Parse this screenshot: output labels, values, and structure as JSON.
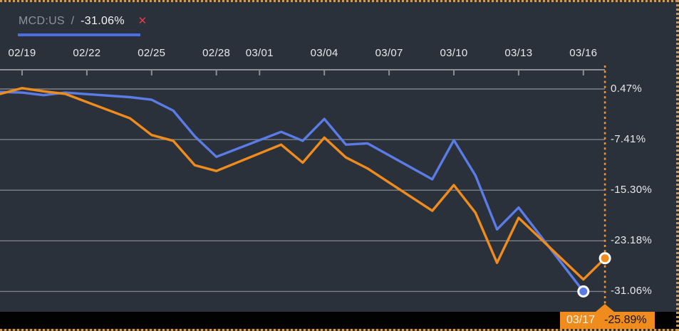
{
  "header": {
    "ticker": "MCD:US",
    "separator": "/",
    "change": "-31.06%",
    "close_icon": "✕"
  },
  "badge": {
    "date": "03/17",
    "value": "-25.89%"
  },
  "colors": {
    "background": "#2b313a",
    "frame_border": "#d19b55",
    "grid": "#7d828a",
    "axis_line": "#8a8f98",
    "tick_text": "#e6e9ec",
    "blue": "#5b7ce6",
    "orange": "#f08c1d",
    "dotted_line": "#e9953f",
    "legend_muted": "#8d939c",
    "legend_value": "#f4f5f6",
    "close_red": "#e23e4e",
    "underline_blue": "#4c6ee3",
    "bottom_bar": "#020202",
    "badge_bg": "#f08c1d",
    "badge_date_text": "#fbf3e7",
    "badge_value_text": "#141414",
    "marker_ring": "#ffffff"
  },
  "chart_data": {
    "type": "line",
    "title": "",
    "xlabel": "",
    "ylabel": "",
    "grid": true,
    "legend_position": "top-left",
    "ylim": [
      -33.5,
      2.5
    ],
    "y_ticks": [
      {
        "label": "0.47%",
        "value": 0.47
      },
      {
        "label": "-7.41%",
        "value": -7.41
      },
      {
        "label": "-15.30%",
        "value": -15.3
      },
      {
        "label": "-23.18%",
        "value": -23.18
      },
      {
        "label": "-31.06%",
        "value": -31.06
      }
    ],
    "x_ticks": [
      {
        "label": "02/19",
        "day": 0
      },
      {
        "label": "02/22",
        "day": 3
      },
      {
        "label": "02/25",
        "day": 6
      },
      {
        "label": "02/28",
        "day": 9
      },
      {
        "label": "03/01",
        "day": 11
      },
      {
        "label": "03/04",
        "day": 14
      },
      {
        "label": "03/07",
        "day": 17
      },
      {
        "label": "03/10",
        "day": 20
      },
      {
        "label": "03/13",
        "day": 23
      },
      {
        "label": "03/16",
        "day": 26
      }
    ],
    "highlight": {
      "date": "03/17",
      "day": 27,
      "value": -25.89
    },
    "series": [
      {
        "name": "MCD:US",
        "color": "#5b7ce6",
        "points": [
          {
            "date": "",
            "day": -1,
            "value": 0.0
          },
          {
            "date": "02/19",
            "day": 0,
            "value": -0.1
          },
          {
            "date": "02/20",
            "day": 1,
            "value": -0.5
          },
          {
            "date": "02/21",
            "day": 2,
            "value": -0.1
          },
          {
            "date": "02/24",
            "day": 5,
            "value": -0.8
          },
          {
            "date": "02/25",
            "day": 6,
            "value": -1.2
          },
          {
            "date": "02/26",
            "day": 7,
            "value": -2.9
          },
          {
            "date": "02/27",
            "day": 8,
            "value": -6.9
          },
          {
            "date": "02/28",
            "day": 9,
            "value": -10.1
          },
          {
            "date": "03/02",
            "day": 12,
            "value": -6.2
          },
          {
            "date": "03/03",
            "day": 13,
            "value": -7.6
          },
          {
            "date": "03/04",
            "day": 14,
            "value": -4.2
          },
          {
            "date": "03/05",
            "day": 15,
            "value": -8.2
          },
          {
            "date": "03/06",
            "day": 16,
            "value": -8.0
          },
          {
            "date": "03/09",
            "day": 19,
            "value": -13.6
          },
          {
            "date": "03/10",
            "day": 20,
            "value": -7.5
          },
          {
            "date": "03/11",
            "day": 21,
            "value": -13.0
          },
          {
            "date": "03/12",
            "day": 22,
            "value": -21.4
          },
          {
            "date": "03/13",
            "day": 23,
            "value": -18.0
          },
          {
            "date": "03/16",
            "day": 26,
            "value": -31.06
          }
        ]
      },
      {
        "name": "",
        "color": "#f08c1d",
        "points": [
          {
            "date": "",
            "day": -1,
            "value": -0.3
          },
          {
            "date": "02/19",
            "day": 0,
            "value": 0.6
          },
          {
            "date": "02/20",
            "day": 1,
            "value": 0.1
          },
          {
            "date": "02/21",
            "day": 2,
            "value": -0.3
          },
          {
            "date": "02/24",
            "day": 5,
            "value": -4.1
          },
          {
            "date": "02/25",
            "day": 6,
            "value": -6.7
          },
          {
            "date": "02/26",
            "day": 7,
            "value": -7.6
          },
          {
            "date": "02/27",
            "day": 8,
            "value": -11.4
          },
          {
            "date": "02/28",
            "day": 9,
            "value": -12.3
          },
          {
            "date": "03/02",
            "day": 12,
            "value": -8.2
          },
          {
            "date": "03/03",
            "day": 13,
            "value": -11.0
          },
          {
            "date": "03/04",
            "day": 14,
            "value": -7.1
          },
          {
            "date": "03/05",
            "day": 15,
            "value": -10.2
          },
          {
            "date": "03/06",
            "day": 16,
            "value": -11.9
          },
          {
            "date": "03/09",
            "day": 19,
            "value": -18.5
          },
          {
            "date": "03/10",
            "day": 20,
            "value": -14.5
          },
          {
            "date": "03/11",
            "day": 21,
            "value": -18.8
          },
          {
            "date": "03/12",
            "day": 22,
            "value": -26.6
          },
          {
            "date": "03/13",
            "day": 23,
            "value": -19.6
          },
          {
            "date": "03/16",
            "day": 26,
            "value": -29.2
          },
          {
            "date": "03/17",
            "day": 27,
            "value": -25.89
          }
        ]
      }
    ]
  }
}
